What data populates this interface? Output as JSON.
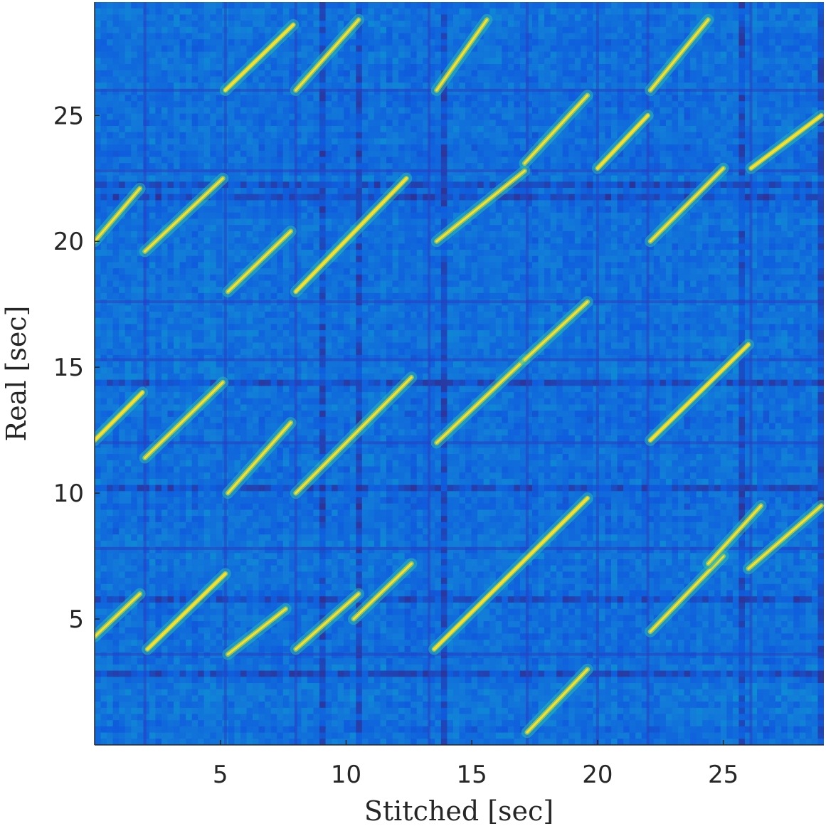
{
  "chart_data": {
    "type": "heatmap",
    "title": "",
    "xlabel": "Stitched [sec]",
    "ylabel": "Real [sec]",
    "xlim": [
      0,
      29
    ],
    "ylim": [
      0,
      29.5
    ],
    "xticks": [
      5,
      10,
      15,
      20,
      25
    ],
    "yticks": [
      5,
      10,
      15,
      20,
      25
    ],
    "xtick_labels": [
      "5",
      "10",
      "15",
      "20",
      "25"
    ],
    "ytick_labels": [
      "5",
      "10",
      "15",
      "20",
      "25"
    ],
    "colormap": "parula",
    "colors": {
      "low": "#3a4fe0",
      "mid": "#24b8c8",
      "high": "#f7e22c"
    },
    "grid": false,
    "legend": "none",
    "diagonal_segments": [
      {
        "x": [
          0,
          1.9
        ],
        "y": [
          12.1,
          14.0
        ]
      },
      {
        "x": [
          2.1,
          5.2
        ],
        "y": [
          3.8,
          6.8
        ]
      },
      {
        "x": [
          5.2,
          7.9
        ],
        "y": [
          26.0,
          28.6
        ]
      },
      {
        "x": [
          8.0,
          12.4
        ],
        "y": [
          18.0,
          22.5
        ]
      },
      {
        "x": [
          13.5,
          19.6
        ],
        "y": [
          3.8,
          9.8
        ]
      },
      {
        "x": [
          20.0,
          22.0
        ],
        "y": [
          22.9,
          25.0
        ]
      },
      {
        "x": [
          22.1,
          26.0
        ],
        "y": [
          12.1,
          15.9
        ]
      },
      {
        "x": [
          26.1,
          28.9
        ],
        "y": [
          22.9,
          25.0
        ]
      },
      {
        "x": [
          0,
          1.8
        ],
        "y": [
          4.3,
          6.0
        ]
      },
      {
        "x": [
          2.0,
          5.1
        ],
        "y": [
          11.4,
          14.4
        ]
      },
      {
        "x": [
          0,
          1.8
        ],
        "y": [
          20.0,
          22.1
        ]
      },
      {
        "x": [
          2.0,
          5.1
        ],
        "y": [
          19.6,
          22.5
        ]
      },
      {
        "x": [
          5.3,
          7.6
        ],
        "y": [
          3.6,
          5.4
        ]
      },
      {
        "x": [
          5.3,
          7.8
        ],
        "y": [
          10.0,
          12.8
        ]
      },
      {
        "x": [
          5.3,
          7.8
        ],
        "y": [
          18.0,
          20.4
        ]
      },
      {
        "x": [
          8.0,
          10.5
        ],
        "y": [
          3.8,
          6.0
        ]
      },
      {
        "x": [
          8.0,
          12.6
        ],
        "y": [
          10.0,
          14.6
        ]
      },
      {
        "x": [
          8.0,
          10.5
        ],
        "y": [
          26.0,
          28.8
        ]
      },
      {
        "x": [
          10.3,
          12.6
        ],
        "y": [
          5.0,
          7.2
        ]
      },
      {
        "x": [
          13.6,
          17.1
        ],
        "y": [
          20.0,
          22.8
        ]
      },
      {
        "x": [
          13.6,
          17.1
        ],
        "y": [
          12.0,
          15.3
        ]
      },
      {
        "x": [
          13.6,
          15.6
        ],
        "y": [
          26.0,
          28.8
        ]
      },
      {
        "x": [
          17.1,
          19.6
        ],
        "y": [
          23.1,
          25.8
        ]
      },
      {
        "x": [
          17.1,
          19.6
        ],
        "y": [
          15.3,
          17.6
        ]
      },
      {
        "x": [
          17.2,
          19.6
        ],
        "y": [
          0.5,
          3.0
        ]
      },
      {
        "x": [
          22.1,
          25.0
        ],
        "y": [
          4.5,
          7.5
        ]
      },
      {
        "x": [
          22.1,
          25.0
        ],
        "y": [
          20.0,
          22.9
        ]
      },
      {
        "x": [
          22.1,
          24.4
        ],
        "y": [
          26.0,
          28.8
        ]
      },
      {
        "x": [
          24.4,
          26.5
        ],
        "y": [
          7.2,
          9.5
        ]
      },
      {
        "x": [
          26.0,
          28.9
        ],
        "y": [
          7.0,
          9.5
        ]
      }
    ],
    "block_edges_x": [
      2.0,
      5.2,
      8.0,
      13.3,
      17.2,
      20.0,
      22.0,
      26.1
    ],
    "block_edges_y": [
      3.6,
      7.8,
      12.0,
      15.3,
      17.6,
      22.8,
      26.0
    ]
  }
}
